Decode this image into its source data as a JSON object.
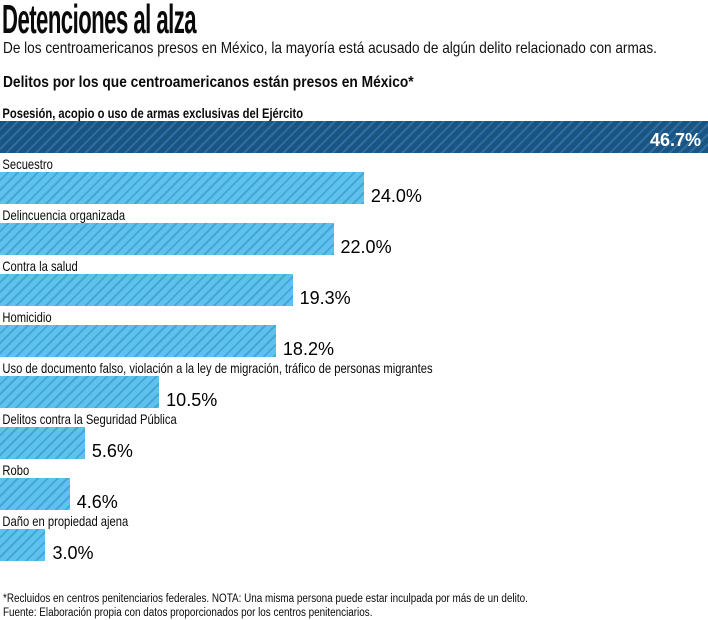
{
  "header": {
    "title": "Detenciones al alza",
    "subtitle": "De los centroamericanos presos en México, la mayoría está acusado de algún delito relacionado con armas."
  },
  "chart_data": {
    "type": "bar",
    "orientation": "horizontal",
    "title": "Delitos por los que centroamericanos están presos en México*",
    "categories": [
      "Posesión, acopio o uso de armas exclusivas del Ejército",
      "Secuestro",
      "Delincuencia organizada",
      "Contra la salud",
      "Homicidio",
      "Uso de documento falso, violación a la ley de migración, tráfico de personas migrantes",
      "Delitos contra la Seguridad Pública",
      "Robo",
      "Daño en propiedad ajena"
    ],
    "values": [
      46.7,
      24.0,
      22.0,
      19.3,
      18.2,
      10.5,
      5.6,
      4.6,
      3.0
    ],
    "value_labels": [
      "46.7%",
      "24.0%",
      "22.0%",
      "19.3%",
      "18.2%",
      "10.5%",
      "5.6%",
      "4.6%",
      "3.0%"
    ],
    "axis_max": 46.7,
    "highlight_index": 0,
    "grid": false,
    "legend": "none",
    "bar_style": "diagonal-hatch",
    "colors": {
      "highlight_bar": "#1a5582",
      "highlight_bar_stripe": "#2e6ea5",
      "bar": "#5ec3ec",
      "bar_stripe": "#45a6d6",
      "highlight_value_text": "#ffffff",
      "value_text": "#000000"
    }
  },
  "footnotes": [
    "*Recluidos en centros penitenciarios federales. NOTA: Una misma persona puede estar inculpada por más de un delito.",
    "Fuente: Elaboración propia con datos proporcionados por los centros penitenciarios."
  ]
}
